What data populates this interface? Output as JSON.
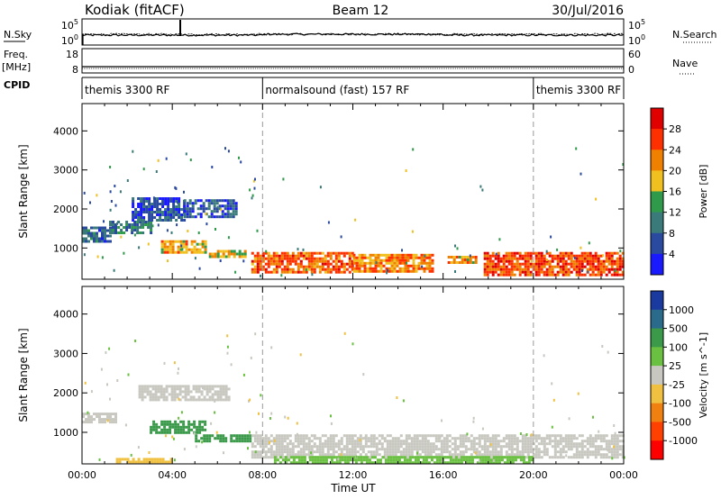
{
  "header": {
    "site": "Kodiak (fitACF)",
    "beam": "Beam 12",
    "date": "30/Jul/2016"
  },
  "strip_labels": {
    "nsky": "N.Sky",
    "nsearch": "N.Search",
    "freq": "Freq.",
    "freq_unit": "[MHz]",
    "nave": "Nave",
    "cpid": "CPID",
    "nsky_ticks": [
      "10^5",
      "10^0"
    ],
    "nsearch_ticks": [
      "10^5",
      "10^0"
    ],
    "freq_ticks": [
      "18",
      "8"
    ],
    "nave_ticks": [
      "60",
      "0"
    ]
  },
  "cpid_segments": [
    {
      "label": "themis 3300 RF",
      "start_hour": 0,
      "end_hour": 8
    },
    {
      "label": "normalsound (fast) 157 RF",
      "start_hour": 8,
      "end_hour": 20
    },
    {
      "label": "themis 3300 RF",
      "start_hour": 20,
      "end_hour": 24
    }
  ],
  "axes": {
    "xlabel": "Time UT",
    "x_ticks": [
      "00:00",
      "04:00",
      "08:00",
      "12:00",
      "16:00",
      "20:00",
      "00:00"
    ],
    "x_tick_hours": [
      0,
      4,
      8,
      12,
      16,
      20,
      24
    ],
    "ylabel": "Slant Range [km]",
    "y_ticks": [
      "1000",
      "2000",
      "3000",
      "4000"
    ],
    "y_tick_values": [
      1000,
      2000,
      3000,
      4000
    ],
    "ylim": [
      200,
      4700
    ],
    "xlim": [
      0,
      24
    ],
    "dashed_lines_hours": [
      8,
      20
    ]
  },
  "colorbars": {
    "power": {
      "label": "Power [dB]",
      "ticks": [
        "4",
        "8",
        "12",
        "16",
        "20",
        "24",
        "28"
      ],
      "colors": [
        "#1a1aff",
        "#2a4aa0",
        "#3a7a7a",
        "#2e9a4a",
        "#f0c020",
        "#f08000",
        "#ff3000",
        "#e00000"
      ]
    },
    "velocity": {
      "label": "Velocity [m s^-1]",
      "ticks": [
        "1000",
        "500",
        "100",
        "25",
        "-25",
        "-100",
        "-500",
        "-1000"
      ],
      "colors": [
        "#1a3aa0",
        "#2a6a8a",
        "#3a9a4a",
        "#6ac040",
        "#c8c8c0",
        "#f0c040",
        "#f08010",
        "#ff4000",
        "#ff0000"
      ]
    }
  },
  "chart_data": {
    "type": "heatmap",
    "title": "Kodiak (fitACF) Beam 12 30/Jul/2016",
    "xlabel": "Time UT",
    "ylabel": "Slant Range [km]",
    "panels": [
      {
        "name": "Power [dB]",
        "value_range": [
          0,
          30
        ],
        "regions": [
          {
            "start_hour": 0.0,
            "end_hour": 1.2,
            "range_min": 1200,
            "range_max": 1550,
            "value": 8
          },
          {
            "start_hour": 1.2,
            "end_hour": 3.0,
            "range_min": 1400,
            "range_max": 1700,
            "value": 10
          },
          {
            "start_hour": 2.2,
            "end_hour": 4.5,
            "range_min": 1700,
            "range_max": 2300,
            "value": 6
          },
          {
            "start_hour": 4.5,
            "end_hour": 6.8,
            "range_min": 1800,
            "range_max": 2250,
            "value": 7
          },
          {
            "start_hour": 3.5,
            "end_hour": 5.5,
            "range_min": 900,
            "range_max": 1200,
            "value": 20
          },
          {
            "start_hour": 5.5,
            "end_hour": 7.2,
            "range_min": 750,
            "range_max": 950,
            "value": 18
          },
          {
            "start_hour": 7.5,
            "end_hour": 12.0,
            "range_min": 400,
            "range_max": 900,
            "value": 24
          },
          {
            "start_hour": 12.0,
            "end_hour": 15.5,
            "range_min": 400,
            "range_max": 850,
            "value": 22
          },
          {
            "start_hour": 16.2,
            "end_hour": 17.5,
            "range_min": 600,
            "range_max": 800,
            "value": 20
          },
          {
            "start_hour": 17.8,
            "end_hour": 24.0,
            "range_min": 300,
            "range_max": 900,
            "value": 26
          }
        ]
      },
      {
        "name": "Velocity [m s^-1]",
        "value_range": [
          -1000,
          1000
        ],
        "regions": [
          {
            "start_hour": 0.0,
            "end_hour": 1.5,
            "range_min": 1250,
            "range_max": 1500,
            "value": 0
          },
          {
            "start_hour": 3.0,
            "end_hour": 5.5,
            "range_min": 1000,
            "range_max": 1300,
            "value": 150
          },
          {
            "start_hour": 5.0,
            "end_hour": 7.5,
            "range_min": 750,
            "range_max": 950,
            "value": 120
          },
          {
            "start_hour": 2.5,
            "end_hour": 6.5,
            "range_min": 1800,
            "range_max": 2200,
            "value": 0
          },
          {
            "start_hour": 7.5,
            "end_hour": 24.0,
            "range_min": 400,
            "range_max": 950,
            "value": 0
          },
          {
            "start_hour": 8.5,
            "end_hour": 20.0,
            "range_min": 250,
            "range_max": 400,
            "value": 60
          },
          {
            "start_hour": 1.5,
            "end_hour": 4.0,
            "range_min": 250,
            "range_max": 350,
            "value": -50
          }
        ]
      }
    ]
  }
}
